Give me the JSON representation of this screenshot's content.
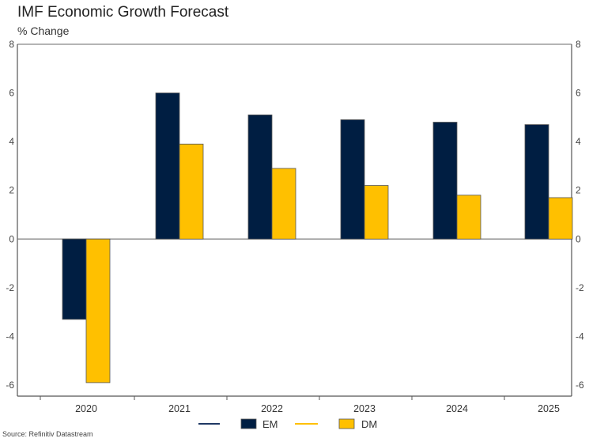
{
  "chart_data": {
    "type": "bar",
    "title": "IMF Economic Growth Forecast",
    "subtitle": "% Change",
    "xlabel": "",
    "ylabel": "% Change",
    "categories": [
      "2020",
      "2021",
      "2022",
      "2023",
      "2024",
      "2025"
    ],
    "series": [
      {
        "name": "EM",
        "color": "#001E42",
        "values": [
          -3.3,
          6.0,
          5.1,
          4.9,
          4.8,
          4.7
        ]
      },
      {
        "name": "DM",
        "color": "#FFC000",
        "values": [
          -5.9,
          3.9,
          2.9,
          2.2,
          1.8,
          1.7
        ]
      }
    ],
    "ylim": [
      -6,
      8
    ],
    "yticks": [
      8,
      6,
      4,
      2,
      0,
      -2,
      -4,
      -6
    ],
    "grid": false,
    "legend": "bottom-center",
    "source": "Source: Refinitiv Datastream"
  }
}
